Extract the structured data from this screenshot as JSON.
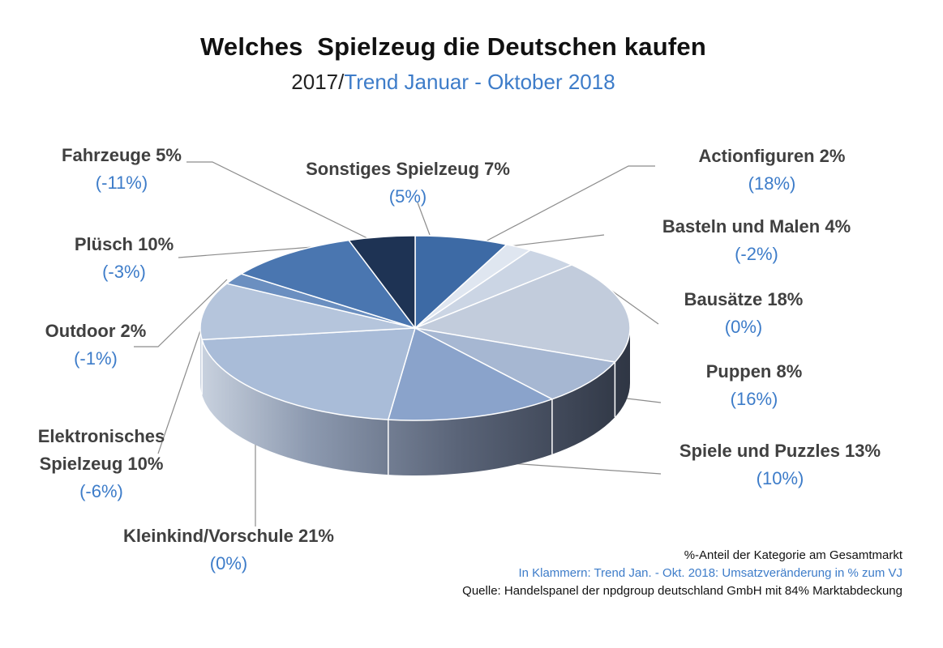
{
  "title": "Welches  Spielzeug die Deutschen kaufen",
  "subtitle": {
    "year": "2017/",
    "trend": "Trend Januar - Oktober 2018"
  },
  "chart_data": {
    "type": "pie",
    "title": "Welches  Spielzeug die Deutschen kaufen",
    "subtitle": "2017/Trend Januar - Oktober 2018",
    "unit": "%-Anteil der Kategorie am Gesamtmarkt",
    "slices": [
      {
        "label": "Sonstiges Spielzeug 7%",
        "name": "Sonstiges Spielzeug",
        "share": 7,
        "trend": "(5%)",
        "color": "#3d6aa5"
      },
      {
        "label": "Actionfiguren  2%",
        "name": "Actionfiguren",
        "share": 2,
        "trend": "(18%)",
        "color": "#dfe6f0"
      },
      {
        "label": "Basteln und Malen 4%",
        "name": "Basteln und Malen",
        "share": 4,
        "trend": "(-2%)",
        "color": "#cbd5e4"
      },
      {
        "label": "Bausätze 18%",
        "name": "Bausätze",
        "share": 18,
        "trend": "(0%)",
        "color": "#c2ccdc"
      },
      {
        "label": "Puppen 8%",
        "name": "Puppen",
        "share": 8,
        "trend": "(16%)",
        "color": "#a6b7d2"
      },
      {
        "label": "Spiele und Puzzles 13%",
        "name": "Spiele und Puzzles",
        "share": 13,
        "trend": "(10%)",
        "color": "#8aa3cb"
      },
      {
        "label": "Kleinkind/Vorschule 21%",
        "name": "Kleinkind/Vorschule",
        "share": 21,
        "trend": "(0%)",
        "color": "#a9bcd8"
      },
      {
        "label": "Elektronisches Spielzeug 10%",
        "name": "Elektronisches Spielzeug",
        "share": 10,
        "trend": "(-6%)",
        "color": "#b5c5dc"
      },
      {
        "label": "Outdoor 2%",
        "name": "Outdoor",
        "share": 2,
        "trend": "(-1%)",
        "color": "#6b8fc0"
      },
      {
        "label": "Plüsch  10%",
        "name": "Plüsch",
        "share": 10,
        "trend": "(-3%)",
        "color": "#4a76b0"
      },
      {
        "label": "Fahrzeuge 5%",
        "name": "Fahrzeuge",
        "share": 5,
        "trend": "(-11%)",
        "color": "#1e3354"
      }
    ]
  },
  "labels": {
    "fahrzeuge": {
      "name": "Fahrzeuge 5%",
      "trend": "(-11%)"
    },
    "sonstiges": {
      "name": "Sonstiges Spielzeug 7%",
      "trend": "(5%)"
    },
    "action": {
      "name": "Actionfiguren  2%",
      "trend": "(18%)"
    },
    "basteln": {
      "name": "Basteln und Malen 4%",
      "trend": "(-2%)"
    },
    "bausaetze": {
      "name": "Bausätze 18%",
      "trend": "(0%)"
    },
    "puppen": {
      "name": "Puppen 8%",
      "trend": "(16%)"
    },
    "spiele": {
      "name": "Spiele und Puzzles 13%",
      "trend": "(10%)"
    },
    "pluesch": {
      "name": "Plüsch  10%",
      "trend": "(-3%)"
    },
    "outdoor": {
      "name": "Outdoor 2%",
      "trend": "(-1%)"
    },
    "elektro": {
      "name_line1": "Elektronisches",
      "name_line2": "Spielzeug 10%",
      "trend": "(-6%)"
    },
    "kleinkind": {
      "name": "Kleinkind/Vorschule 21%",
      "trend": "(0%)"
    }
  },
  "footnotes": {
    "share": "%-Anteil der Kategorie am Gesamtmarkt",
    "trend": "In Klammern: Trend Jan. - Okt. 2018: Umsatzveränderung in % zum VJ",
    "source": "Quelle: Handelspanel der npdgroup deutschland GmbH mit 84% Marktabdeckung"
  },
  "colors": {
    "trend_blue": "#3d7cc9",
    "label_gray": "#404040",
    "side_dark": "#3f4655",
    "side_light": "#9aa8bf"
  }
}
